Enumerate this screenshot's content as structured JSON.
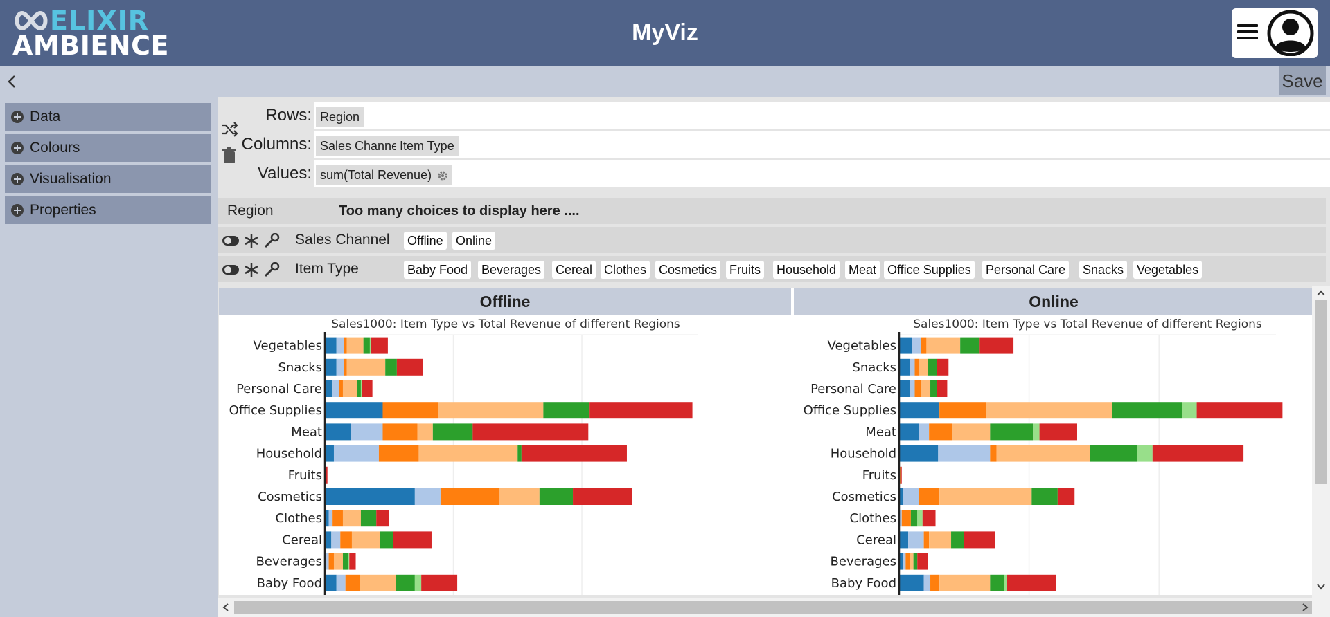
{
  "header": {
    "logo_line1": "ELIXIR",
    "logo_line2": "AMBIENCE",
    "title": "MyViz"
  },
  "toolbar": {
    "save_label": "Save"
  },
  "sidebar": {
    "items": [
      {
        "label": "Data"
      },
      {
        "label": "Colours"
      },
      {
        "label": "Visualisation"
      },
      {
        "label": "Properties"
      }
    ]
  },
  "shelves": {
    "rows_label": "Rows:",
    "rows": [
      "Region"
    ],
    "columns_label": "Columns:",
    "columns": [
      "Sales Channel",
      "Item Type"
    ],
    "values_label": "Values:",
    "values": [
      "sum(Total Revenue)"
    ]
  },
  "filters": {
    "region": {
      "name": "Region",
      "message": "Too many choices to display here ...."
    },
    "sales_channel": {
      "name": "Sales Channel",
      "options": [
        "Offline",
        "Online"
      ]
    },
    "item_type": {
      "name": "Item Type",
      "options": [
        "Baby Food",
        "Beverages",
        "Cereal",
        "Clothes",
        "Cosmetics",
        "Fruits",
        "Household",
        "Meat",
        "Office Supplies",
        "Personal Care",
        "Snacks",
        "Vegetables"
      ]
    }
  },
  "panels": [
    "Offline",
    "Online"
  ],
  "colors": {
    "series": [
      "#1f77b4",
      "#aec7e8",
      "#ff7f0e",
      "#ffbb78",
      "#2ca02c",
      "#98df8a",
      "#d62728"
    ]
  },
  "chart_data": [
    {
      "type": "bar",
      "orientation": "horizontal",
      "stacked": true,
      "title": "Sales1000: Item Type vs Total Revenue of different Regions",
      "categories": [
        "Vegetables",
        "Snacks",
        "Personal Care",
        "Office Supplies",
        "Meat",
        "Household",
        "Fruits",
        "Cosmetics",
        "Clothes",
        "Cereal",
        "Beverages",
        "Baby Food"
      ],
      "xlim": [
        0,
        2.9
      ],
      "grid": true,
      "series": [
        {
          "values": [
            0.09,
            0.09,
            0.06,
            0.45,
            0.2,
            0.07,
            0.0,
            0.7,
            0.03,
            0.05,
            0.01,
            0.09
          ]
        },
        {
          "values": [
            0.06,
            0.06,
            0.05,
            0.0,
            0.25,
            0.35,
            0.0,
            0.2,
            0.03,
            0.07,
            0.02,
            0.07
          ]
        },
        {
          "values": [
            0.02,
            0.02,
            0.03,
            0.43,
            0.27,
            0.31,
            0.01,
            0.46,
            0.08,
            0.09,
            0.04,
            0.11
          ]
        },
        {
          "values": [
            0.13,
            0.3,
            0.11,
            0.82,
            0.12,
            0.77,
            0.0,
            0.31,
            0.14,
            0.22,
            0.07,
            0.28
          ]
        },
        {
          "values": [
            0.05,
            0.09,
            0.03,
            0.36,
            0.31,
            0.03,
            0.0,
            0.26,
            0.12,
            0.1,
            0.04,
            0.15
          ]
        },
        {
          "values": [
            0.01,
            0.0,
            0.01,
            0.0,
            0.0,
            0.0,
            0.0,
            0.0,
            0.0,
            0.0,
            0.01,
            0.05
          ]
        },
        {
          "values": [
            0.13,
            0.2,
            0.08,
            0.8,
            0.9,
            0.82,
            0.01,
            0.46,
            0.1,
            0.3,
            0.05,
            0.28
          ]
        }
      ]
    },
    {
      "type": "bar",
      "orientation": "horizontal",
      "stacked": true,
      "title": "Sales1000: Item Type vs Total Revenue of different Regions",
      "categories": [
        "Vegetables",
        "Snacks",
        "Personal Care",
        "Office Supplies",
        "Meat",
        "Household",
        "Fruits",
        "Cosmetics",
        "Clothes",
        "Cereal",
        "Beverages",
        "Baby Food"
      ],
      "xlim": [
        0,
        2.9
      ],
      "grid": true,
      "series": [
        {
          "values": [
            0.1,
            0.08,
            0.08,
            0.31,
            0.15,
            0.3,
            0.0,
            0.03,
            0.0,
            0.07,
            0.03,
            0.19
          ]
        },
        {
          "values": [
            0.07,
            0.04,
            0.04,
            0.0,
            0.08,
            0.4,
            0.0,
            0.12,
            0.02,
            0.12,
            0.02,
            0.05
          ]
        },
        {
          "values": [
            0.04,
            0.03,
            0.05,
            0.36,
            0.18,
            0.05,
            0.01,
            0.16,
            0.07,
            0.04,
            0.03,
            0.07
          ]
        },
        {
          "values": [
            0.26,
            0.07,
            0.07,
            0.97,
            0.29,
            0.72,
            0.0,
            0.71,
            0.0,
            0.17,
            0.03,
            0.39
          ]
        },
        {
          "values": [
            0.15,
            0.07,
            0.05,
            0.54,
            0.33,
            0.36,
            0.0,
            0.2,
            0.05,
            0.1,
            0.03,
            0.11
          ]
        },
        {
          "values": [
            0.0,
            0.0,
            0.0,
            0.11,
            0.05,
            0.12,
            0.0,
            0.0,
            0.04,
            0.0,
            0.0,
            0.02
          ]
        },
        {
          "values": [
            0.26,
            0.09,
            0.08,
            0.66,
            0.29,
            0.7,
            0.01,
            0.13,
            0.1,
            0.24,
            0.08,
            0.38
          ]
        }
      ]
    }
  ]
}
